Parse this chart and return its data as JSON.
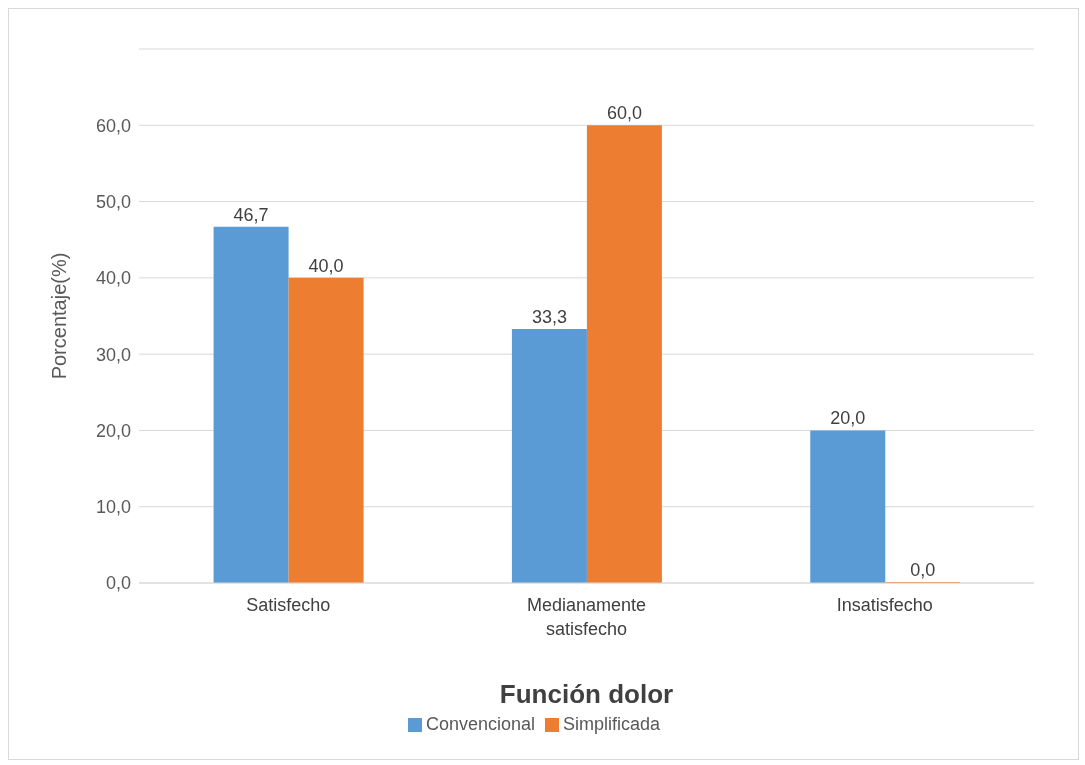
{
  "chart_data": {
    "type": "bar",
    "xlabel": "Función dolor",
    "ylabel": "Porcentaje(%)",
    "categories": [
      "Satisfecho",
      "Medianamente satisfecho",
      "Insatisfecho"
    ],
    "series": [
      {
        "name": "Convencional",
        "color": "#5b9bd5",
        "values": [
          46.7,
          33.3,
          20.0
        ],
        "value_labels": [
          "46,7",
          "33,3",
          "20,0"
        ]
      },
      {
        "name": "Simplificada",
        "color": "#ed7d31",
        "values": [
          40.0,
          60.0,
          0.0
        ],
        "value_labels": [
          "40,0",
          "60,0",
          "0,0"
        ]
      }
    ],
    "ylim": [
      0,
      70
    ],
    "yticks": [
      {
        "value": 0,
        "label": "0,0"
      },
      {
        "value": 10,
        "label": "10,0"
      },
      {
        "value": 20,
        "label": "20,0"
      },
      {
        "value": 30,
        "label": "30,0"
      },
      {
        "value": 40,
        "label": "40,0"
      },
      {
        "value": 50,
        "label": "50,0"
      },
      {
        "value": 60,
        "label": "60,0"
      },
      {
        "value": 70,
        "label": null
      }
    ],
    "grid": "y",
    "legend": "bottom"
  }
}
